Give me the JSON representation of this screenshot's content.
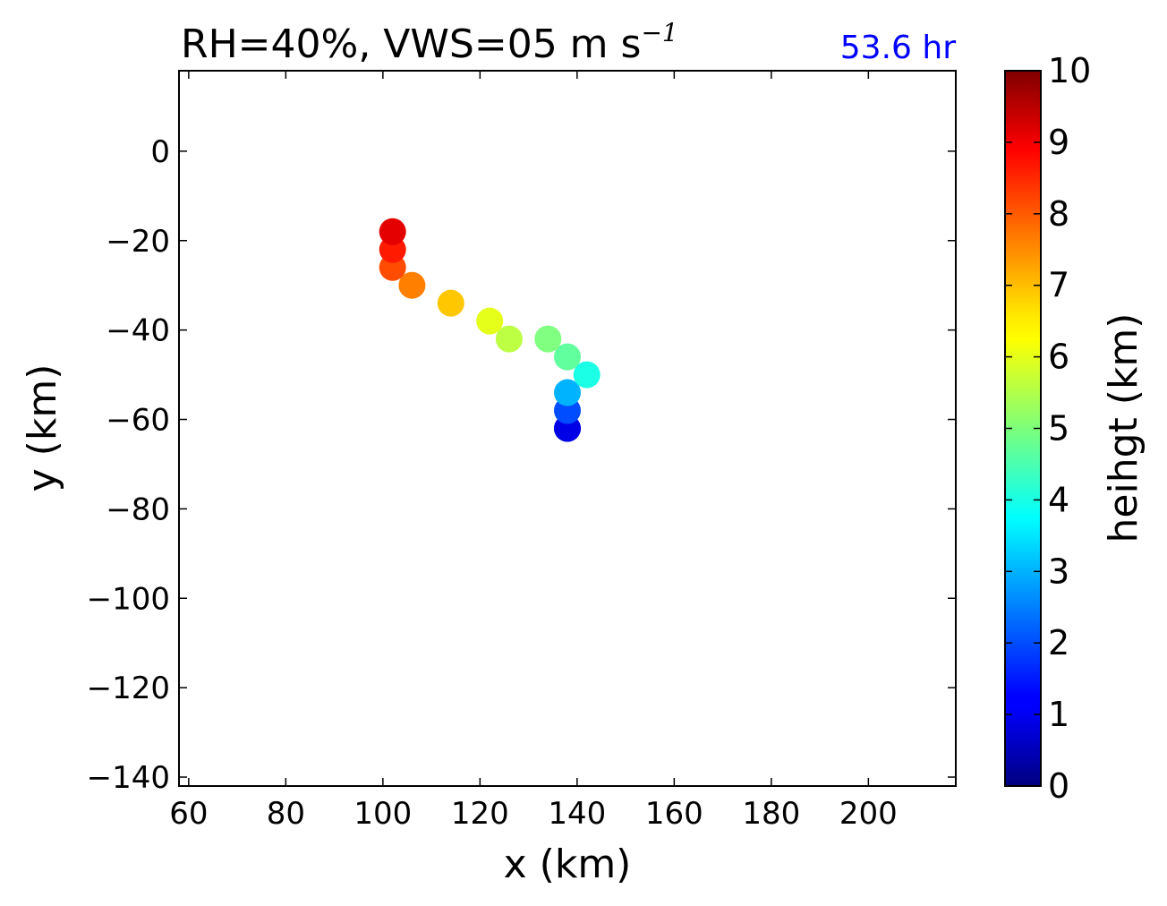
{
  "chart_data": {
    "type": "scatter",
    "title": "RH=40%, VWS=05 m s",
    "title_superscript": "−1",
    "annotation": "53.6 hr",
    "annotation_color": "#0000ff",
    "xlabel": "x (km)",
    "ylabel": "y (km)",
    "xlim": [
      58,
      218
    ],
    "ylim": [
      -142,
      18
    ],
    "xticks": [
      60,
      80,
      100,
      120,
      140,
      160,
      180,
      200
    ],
    "yticks": [
      0,
      -20,
      -40,
      -60,
      -80,
      -100,
      -120,
      -140
    ],
    "xtick_labels": [
      "60",
      "80",
      "100",
      "120",
      "140",
      "160",
      "180",
      "200"
    ],
    "ytick_labels": [
      "0",
      "−20",
      "−40",
      "−60",
      "−80",
      "−100",
      "−120",
      "−140"
    ],
    "colorbar": {
      "label": "heihgt (km)",
      "colormap": "jet",
      "range": [
        0,
        10
      ],
      "ticks": [
        0,
        1,
        2,
        3,
        4,
        5,
        6,
        7,
        8,
        9,
        10
      ],
      "tick_labels": [
        "0",
        "1",
        "2",
        "3",
        "4",
        "5",
        "6",
        "7",
        "8",
        "9",
        "10"
      ]
    },
    "points": [
      {
        "x": 138,
        "y": -62,
        "height": 0.5
      },
      {
        "x": 138,
        "y": -62,
        "height": 1.0
      },
      {
        "x": 138,
        "y": -58,
        "height": 2.0
      },
      {
        "x": 138,
        "y": -54,
        "height": 3.0
      },
      {
        "x": 142,
        "y": -50,
        "height": 4.0
      },
      {
        "x": 138,
        "y": -46,
        "height": 4.7
      },
      {
        "x": 134,
        "y": -42,
        "height": 5.0
      },
      {
        "x": 126,
        "y": -42,
        "height": 5.6
      },
      {
        "x": 122,
        "y": -38,
        "height": 6.0
      },
      {
        "x": 114,
        "y": -34,
        "height": 6.8
      },
      {
        "x": 106,
        "y": -30,
        "height": 7.5
      },
      {
        "x": 102,
        "y": -26,
        "height": 8.0
      },
      {
        "x": 102,
        "y": -22,
        "height": 8.5
      },
      {
        "x": 102,
        "y": -18,
        "height": 9.0
      }
    ]
  }
}
